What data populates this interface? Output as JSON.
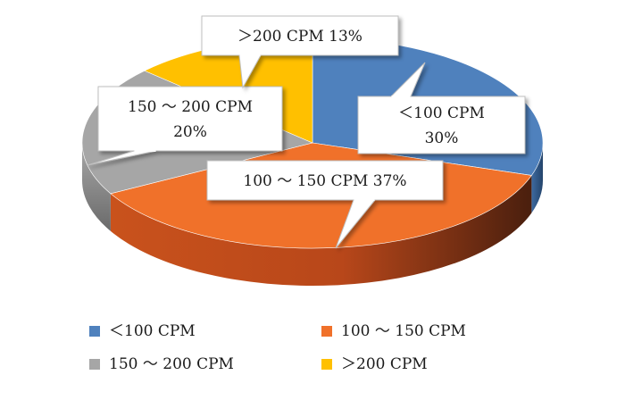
{
  "chart_data": {
    "type": "pie",
    "style": "3d-exploded-with-callouts",
    "title": "",
    "slices": [
      {
        "label": "＜100 CPM",
        "value": 30,
        "percent_label": "30%",
        "color": "#4f81bd"
      },
      {
        "label": "100 ～ 150 CPM",
        "value": 37,
        "percent_label": "37%",
        "color": "#f0712a"
      },
      {
        "label": "150 ～ 200 CPM",
        "value": 20,
        "percent_label": "20%",
        "color": "#a6a6a6"
      },
      {
        "label": "＞200 CPM",
        "value": 13,
        "percent_label": "13%",
        "color": "#ffc000"
      }
    ],
    "legend": {
      "placement": "bottom",
      "entries": [
        "＜100 CPM",
        "100 ～ 150 CPM",
        "150 ～ 200 CPM",
        "＞200 CPM"
      ]
    },
    "callouts": [
      {
        "slice": 0,
        "lines": [
          "＜100 CPM",
          "30%"
        ]
      },
      {
        "slice": 1,
        "lines": [
          "100 ～ 150 CPM 37%"
        ]
      },
      {
        "slice": 2,
        "lines": [
          "150 ～ 200 CPM",
          "20%"
        ]
      },
      {
        "slice": 3,
        "lines": [
          "＞200 CPM 13%"
        ]
      }
    ]
  }
}
